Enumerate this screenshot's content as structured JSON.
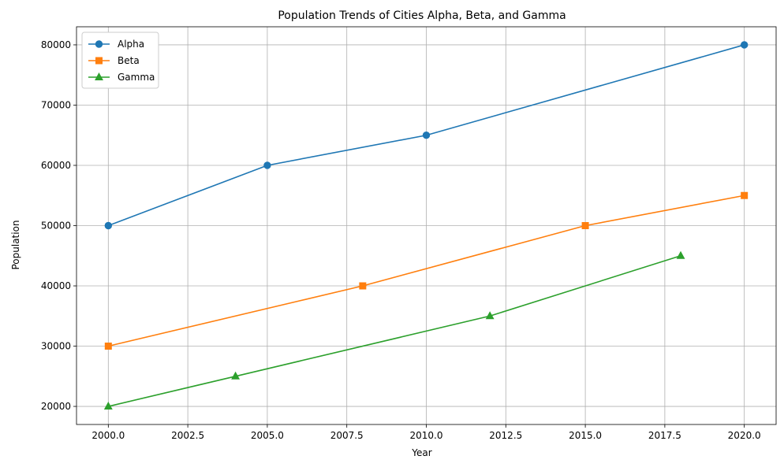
{
  "chart_data": {
    "type": "line",
    "title": "Population Trends of Cities Alpha, Beta, and Gamma",
    "xlabel": "Year",
    "ylabel": "Population",
    "xlim": [
      1999.0,
      2021.0
    ],
    "ylim": [
      17000,
      83000
    ],
    "xticks": [
      2000.0,
      2002.5,
      2005.0,
      2007.5,
      2010.0,
      2012.5,
      2015.0,
      2017.5,
      2020.0
    ],
    "xtick_labels": [
      "2000.0",
      "2002.5",
      "2005.0",
      "2007.5",
      "2010.0",
      "2012.5",
      "2015.0",
      "2017.5",
      "2020.0"
    ],
    "yticks": [
      20000,
      30000,
      40000,
      50000,
      60000,
      70000,
      80000
    ],
    "ytick_labels": [
      "20000",
      "30000",
      "40000",
      "50000",
      "60000",
      "70000",
      "80000"
    ],
    "grid": true,
    "legend_position": "top-left",
    "series": [
      {
        "name": "Alpha",
        "color": "#1f77b4",
        "marker": "circle",
        "x": [
          2000,
          2005,
          2010,
          2020
        ],
        "y": [
          50000,
          60000,
          65000,
          80000
        ]
      },
      {
        "name": "Beta",
        "color": "#ff7f0e",
        "marker": "square",
        "x": [
          2000,
          2008,
          2015,
          2020
        ],
        "y": [
          30000,
          40000,
          50000,
          55000
        ]
      },
      {
        "name": "Gamma",
        "color": "#2ca02c",
        "marker": "triangle",
        "x": [
          2000,
          2004,
          2012,
          2018
        ],
        "y": [
          20000,
          25000,
          35000,
          45000
        ]
      }
    ]
  }
}
